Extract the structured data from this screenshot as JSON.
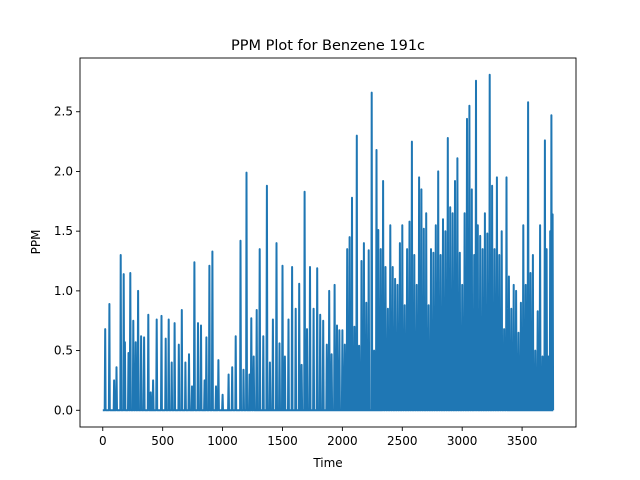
{
  "chart_data": {
    "type": "line",
    "title": "PPM Plot for Benzene  191c",
    "xlabel": "Time",
    "ylabel": "PPM",
    "xlim": [
      -190,
      3950
    ],
    "ylim": [
      -0.14,
      2.95
    ],
    "xticks": [
      0,
      500,
      1000,
      1500,
      2000,
      2500,
      3000,
      3500
    ],
    "yticks": [
      0.0,
      0.5,
      1.0,
      1.5,
      2.0,
      2.5
    ],
    "ytick_labels": [
      "0.0",
      "0.5",
      "1.0",
      "1.5",
      "2.0",
      "2.5"
    ],
    "grid": false,
    "series_color": "#1f77b4",
    "x_max": 3760,
    "peaks": [
      [
        20,
        0.68
      ],
      [
        55,
        0.89
      ],
      [
        95,
        0.25
      ],
      [
        115,
        0.36
      ],
      [
        150,
        1.3
      ],
      [
        175,
        1.14
      ],
      [
        185,
        0.57
      ],
      [
        215,
        0.48
      ],
      [
        230,
        1.15
      ],
      [
        255,
        0.75
      ],
      [
        275,
        0.57
      ],
      [
        295,
        1.0
      ],
      [
        320,
        0.62
      ],
      [
        345,
        0.61
      ],
      [
        380,
        0.8
      ],
      [
        400,
        0.15
      ],
      [
        420,
        0.25
      ],
      [
        450,
        0.76
      ],
      [
        490,
        0.79
      ],
      [
        525,
        0.6
      ],
      [
        550,
        0.76
      ],
      [
        575,
        0.4
      ],
      [
        600,
        0.73
      ],
      [
        635,
        0.55
      ],
      [
        660,
        0.84
      ],
      [
        690,
        0.4
      ],
      [
        720,
        0.47
      ],
      [
        745,
        0.2
      ],
      [
        765,
        1.24
      ],
      [
        795,
        0.73
      ],
      [
        820,
        0.71
      ],
      [
        850,
        0.25
      ],
      [
        865,
        0.61
      ],
      [
        890,
        1.21
      ],
      [
        915,
        1.33
      ],
      [
        945,
        0.2
      ],
      [
        965,
        0.42
      ],
      [
        1000,
        0.13
      ],
      [
        1050,
        0.3
      ],
      [
        1080,
        0.36
      ],
      [
        1110,
        0.62
      ],
      [
        1150,
        1.42
      ],
      [
        1175,
        0.34
      ],
      [
        1200,
        1.99
      ],
      [
        1225,
        0.3
      ],
      [
        1240,
        0.77
      ],
      [
        1260,
        0.45
      ],
      [
        1285,
        0.84
      ],
      [
        1310,
        1.35
      ],
      [
        1340,
        0.62
      ],
      [
        1370,
        1.88
      ],
      [
        1395,
        0.4
      ],
      [
        1420,
        0.76
      ],
      [
        1450,
        1.4
      ],
      [
        1475,
        0.56
      ],
      [
        1500,
        1.21
      ],
      [
        1520,
        0.45
      ],
      [
        1550,
        0.76
      ],
      [
        1580,
        1.2
      ],
      [
        1610,
        0.85
      ],
      [
        1640,
        1.06
      ],
      [
        1660,
        0.38
      ],
      [
        1685,
        1.83
      ],
      [
        1705,
        0.68
      ],
      [
        1730,
        1.2
      ],
      [
        1760,
        0.85
      ],
      [
        1790,
        1.19
      ],
      [
        1815,
        0.8
      ],
      [
        1840,
        0.75
      ],
      [
        1870,
        0.55
      ],
      [
        1890,
        1.0
      ],
      [
        1910,
        0.47
      ],
      [
        1935,
        1.05
      ],
      [
        1955,
        0.71
      ],
      [
        1975,
        0.67
      ],
      [
        2000,
        0.67
      ],
      [
        2020,
        0.55
      ],
      [
        2040,
        1.35
      ],
      [
        2060,
        1.45
      ],
      [
        2080,
        1.78
      ],
      [
        2100,
        0.7
      ],
      [
        2120,
        2.3
      ],
      [
        2140,
        0.54
      ],
      [
        2160,
        1.25
      ],
      [
        2180,
        1.4
      ],
      [
        2200,
        0.9
      ],
      [
        2220,
        1.34
      ],
      [
        2245,
        2.66
      ],
      [
        2265,
        0.5
      ],
      [
        2285,
        2.18
      ],
      [
        2300,
        1.51
      ],
      [
        2320,
        1.35
      ],
      [
        2340,
        1.92
      ],
      [
        2360,
        1.2
      ],
      [
        2380,
        0.85
      ],
      [
        2400,
        1.55
      ],
      [
        2420,
        1.2
      ],
      [
        2440,
        1.1
      ],
      [
        2460,
        1.05
      ],
      [
        2480,
        1.4
      ],
      [
        2500,
        1.55
      ],
      [
        2520,
        0.88
      ],
      [
        2540,
        1.35
      ],
      [
        2560,
        1.58
      ],
      [
        2580,
        2.25
      ],
      [
        2600,
        1.3
      ],
      [
        2620,
        1.05
      ],
      [
        2640,
        1.95
      ],
      [
        2660,
        1.85
      ],
      [
        2680,
        1.52
      ],
      [
        2700,
        1.65
      ],
      [
        2720,
        0.88
      ],
      [
        2740,
        1.35
      ],
      [
        2760,
        1.32
      ],
      [
        2780,
        1.55
      ],
      [
        2800,
        2.0
      ],
      [
        2820,
        1.3
      ],
      [
        2840,
        1.6
      ],
      [
        2860,
        1.5
      ],
      [
        2880,
        2.28
      ],
      [
        2900,
        1.7
      ],
      [
        2920,
        1.65
      ],
      [
        2940,
        1.92
      ],
      [
        2960,
        2.11
      ],
      [
        2980,
        1.32
      ],
      [
        3000,
        1.05
      ],
      [
        3020,
        1.65
      ],
      [
        3040,
        2.44
      ],
      [
        3060,
        2.55
      ],
      [
        3080,
        1.85
      ],
      [
        3100,
        1.3
      ],
      [
        3115,
        2.76
      ],
      [
        3130,
        1.55
      ],
      [
        3150,
        1.46
      ],
      [
        3170,
        1.35
      ],
      [
        3190,
        1.65
      ],
      [
        3210,
        1.48
      ],
      [
        3230,
        2.81
      ],
      [
        3250,
        1.88
      ],
      [
        3270,
        1.35
      ],
      [
        3290,
        1.95
      ],
      [
        3310,
        1.3
      ],
      [
        3330,
        1.5
      ],
      [
        3350,
        0.68
      ],
      [
        3370,
        1.95
      ],
      [
        3390,
        1.12
      ],
      [
        3410,
        0.85
      ],
      [
        3430,
        1.05
      ],
      [
        3450,
        1.0
      ],
      [
        3470,
        0.65
      ],
      [
        3490,
        0.9
      ],
      [
        3510,
        1.55
      ],
      [
        3530,
        1.05
      ],
      [
        3550,
        2.58
      ],
      [
        3570,
        1.15
      ],
      [
        3590,
        1.3
      ],
      [
        3610,
        0.5
      ],
      [
        3630,
        0.83
      ],
      [
        3650,
        1.55
      ],
      [
        3670,
        0.45
      ],
      [
        3690,
        2.26
      ],
      [
        3705,
        1.35
      ],
      [
        3720,
        0.45
      ],
      [
        3735,
        1.5
      ],
      [
        3745,
        2.47
      ],
      [
        3755,
        1.64
      ]
    ]
  }
}
